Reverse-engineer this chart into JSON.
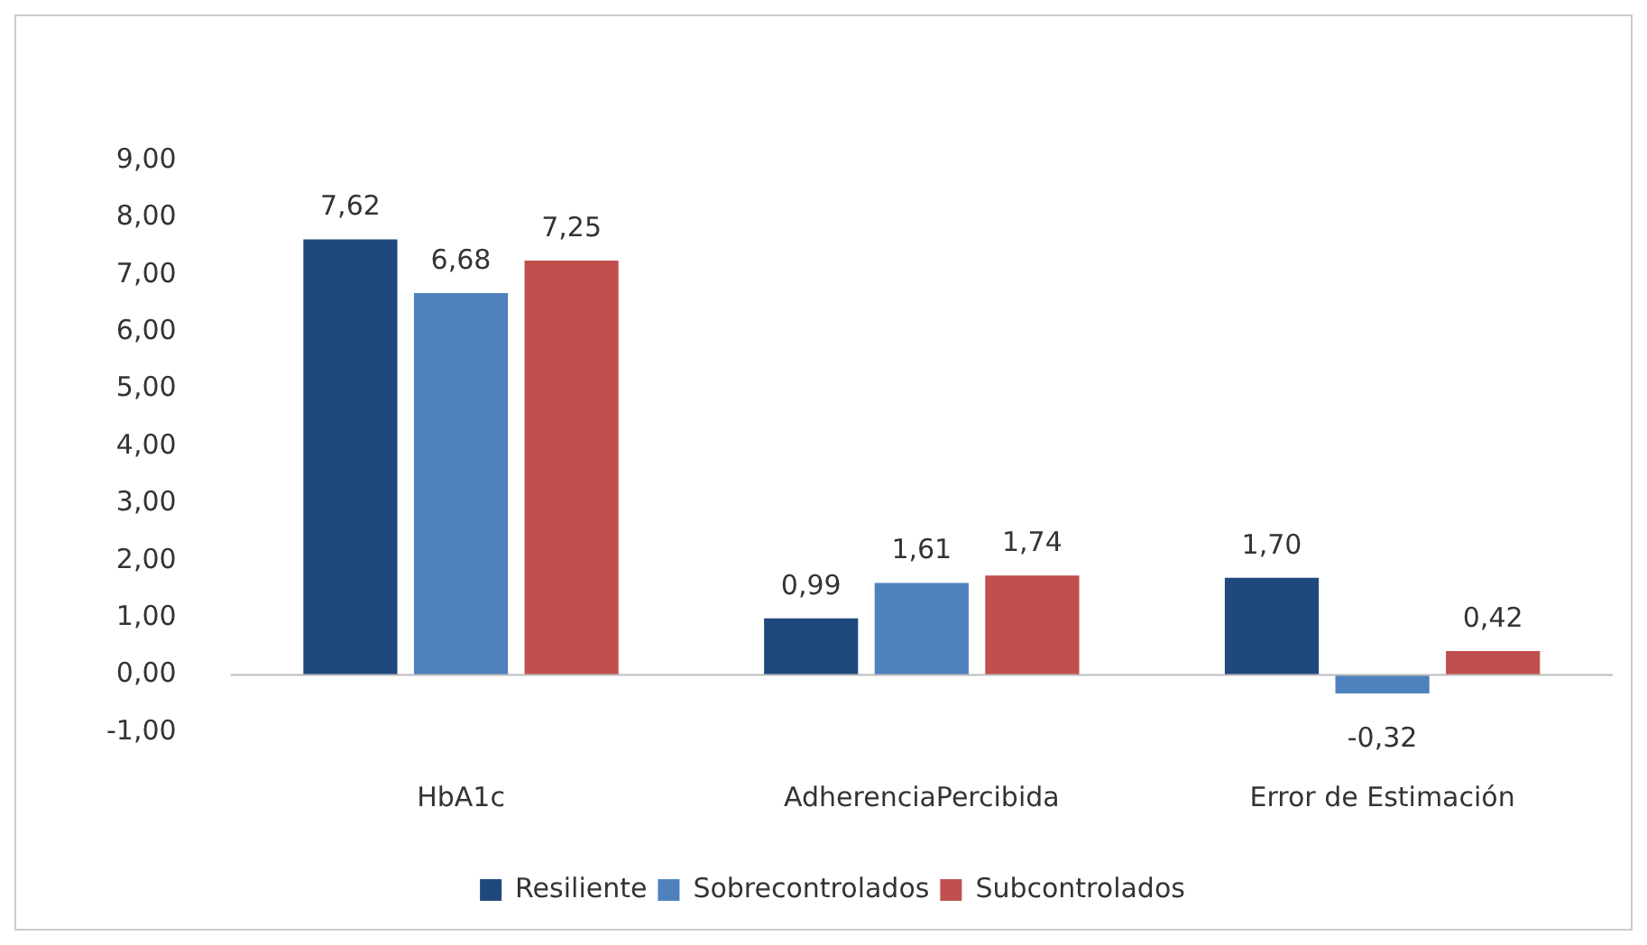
{
  "chart_data": {
    "type": "bar",
    "categories": [
      "HbA1c",
      "AdherenciaPercibida",
      "Error de Estimación"
    ],
    "series": [
      {
        "name": "Resiliente",
        "color": "#1f497d",
        "values": [
          7.62,
          0.99,
          1.7
        ],
        "value_labels": [
          "7,62",
          "0,99",
          "1,70"
        ]
      },
      {
        "name": "Sobrecontrolados",
        "color": "#4f81bd",
        "values": [
          6.68,
          1.61,
          -0.32
        ],
        "value_labels": [
          "6,68",
          "1,61",
          "-0,32"
        ]
      },
      {
        "name": "Subcontrolados",
        "color": "#c0504d",
        "values": [
          7.25,
          1.74,
          0.42
        ],
        "value_labels": [
          "7,25",
          "1,74",
          "0,42"
        ]
      }
    ],
    "ylim": [
      -1,
      9
    ],
    "yticks": [
      {
        "value": -1,
        "label": "-1,00"
      },
      {
        "value": 0,
        "label": "0,00"
      },
      {
        "value": 1,
        "label": "1,00"
      },
      {
        "value": 2,
        "label": "2,00"
      },
      {
        "value": 3,
        "label": "3,00"
      },
      {
        "value": 4,
        "label": "4,00"
      },
      {
        "value": 5,
        "label": "5,00"
      },
      {
        "value": 6,
        "label": "6,00"
      },
      {
        "value": 7,
        "label": "7,00"
      },
      {
        "value": 8,
        "label": "8,00"
      },
      {
        "value": 9,
        "label": "9,00"
      }
    ],
    "ref_lines": [
      {
        "axis": "y",
        "value": 0,
        "color": "#bbbbbb"
      }
    ],
    "grid": false,
    "legend": "bottom"
  }
}
